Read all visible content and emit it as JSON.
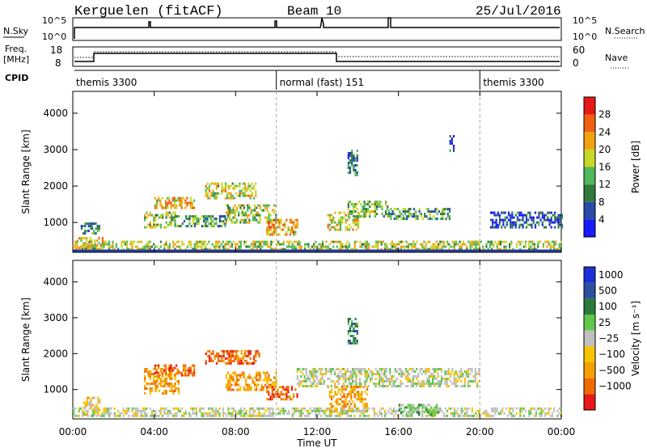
{
  "header": {
    "site": "Kerguelen (fitACF)",
    "beam": "Beam 10",
    "date": "25/Jul/2016"
  },
  "noise_panel": {
    "left_label": "N.Sky",
    "left_ticks": [
      "10^5",
      "10^0"
    ],
    "right_label": "N.Search",
    "right_ticks": [
      "10^5",
      "10^0"
    ]
  },
  "freq_panel": {
    "left_label_1": "Freq.",
    "left_label_2": "[MHz]",
    "left_ticks": [
      "18",
      "8"
    ],
    "right_label": "Nave",
    "right_ticks": [
      "60",
      "0"
    ]
  },
  "cpid_panel": {
    "label": "CPID",
    "modes": [
      {
        "text": "themis 3300",
        "start_hour": 0
      },
      {
        "text": "normal (fast) 151",
        "start_hour": 10
      },
      {
        "text": "themis 3300",
        "start_hour": 20
      }
    ]
  },
  "colors": {
    "power": [
      "#1a1aff",
      "#2a4aa8",
      "#2f7a3a",
      "#4fb85a",
      "#c8d829",
      "#f2a20d",
      "#f06010",
      "#e81818"
    ],
    "velocity": [
      "#1b2fd6",
      "#2c4fa0",
      "#2b7a3a",
      "#5fc74a",
      "#c0c0c0",
      "#f5c300",
      "#f5a000",
      "#f06a00",
      "#e81818"
    ],
    "ground_scatter": "#909090"
  },
  "chart_data": [
    {
      "type": "heatmap",
      "name": "Power",
      "ylabel": "Slant Range [km]",
      "yticks": [
        "1000",
        "2000",
        "3000",
        "4000"
      ],
      "ylim": [
        180,
        4600
      ],
      "colorbar_label": "Power [dB]",
      "colorbar_ticks": [
        "4",
        "8",
        "12",
        "16",
        "20",
        "24",
        "28"
      ],
      "colorbar_range": [
        0,
        32
      ],
      "blobs": [
        {
          "t0": 0.2,
          "t1": 1.5,
          "r0": 300,
          "r1": 600,
          "v": 20
        },
        {
          "t0": 0.3,
          "t1": 1.3,
          "r0": 700,
          "r1": 1000,
          "v": 10
        },
        {
          "t0": 3.5,
          "t1": 5.0,
          "r0": 900,
          "r1": 1300,
          "v": 17
        },
        {
          "t0": 4.0,
          "t1": 6.0,
          "r0": 1400,
          "r1": 1700,
          "v": 21
        },
        {
          "t0": 5.0,
          "t1": 7.5,
          "r0": 900,
          "r1": 1200,
          "v": 12
        },
        {
          "t0": 6.5,
          "t1": 9.0,
          "r0": 1700,
          "r1": 2100,
          "v": 18
        },
        {
          "t0": 7.5,
          "t1": 10.0,
          "r0": 1000,
          "r1": 1500,
          "v": 16
        },
        {
          "t0": 9.5,
          "t1": 11.0,
          "r0": 700,
          "r1": 1100,
          "v": 22
        },
        {
          "t0": 12.5,
          "t1": 14.0,
          "r0": 800,
          "r1": 1300,
          "v": 19
        },
        {
          "t0": 13.5,
          "t1": 15.5,
          "r0": 1200,
          "r1": 1600,
          "v": 14
        },
        {
          "t0": 15.5,
          "t1": 18.5,
          "r0": 1100,
          "r1": 1400,
          "v": 11
        },
        {
          "t0": 0,
          "t1": 24,
          "r0": 250,
          "r1": 500,
          "v": 17
        },
        {
          "t0": 13.5,
          "t1": 14.0,
          "r0": 2300,
          "r1": 3000,
          "v": 8
        },
        {
          "t0": 18.5,
          "t1": 18.7,
          "r0": 3000,
          "r1": 3400,
          "v": 6
        },
        {
          "t0": 20.5,
          "t1": 24,
          "r0": 900,
          "r1": 1300,
          "v": 6
        }
      ]
    },
    {
      "type": "heatmap",
      "name": "Velocity",
      "ylabel": "Slant Range [km]",
      "xlabel": "Time UT",
      "xticks": [
        "00:00",
        "04:00",
        "08:00",
        "12:00",
        "16:00",
        "20:00",
        "00:00"
      ],
      "xlim": [
        0,
        24
      ],
      "yticks": [
        "1000",
        "2000",
        "3000",
        "4000"
      ],
      "ylim": [
        180,
        4600
      ],
      "colorbar_label": "Velocity [m s⁻¹]",
      "colorbar_ticks": [
        "1000",
        "500",
        "100",
        "25",
        "−25",
        "−100",
        "−500",
        "−1000"
      ],
      "blobs": [
        {
          "t0": 0.5,
          "t1": 1.3,
          "r0": 300,
          "r1": 800,
          "cls": 5
        },
        {
          "t0": 3.5,
          "t1": 5.2,
          "r0": 900,
          "r1": 1600,
          "cls": 6
        },
        {
          "t0": 4.0,
          "t1": 6.0,
          "r0": 1400,
          "r1": 1700,
          "cls": 7
        },
        {
          "t0": 6.5,
          "t1": 9.2,
          "r0": 1700,
          "r1": 2100,
          "cls": 7
        },
        {
          "t0": 7.5,
          "t1": 10.0,
          "r0": 1000,
          "r1": 1500,
          "cls": 6
        },
        {
          "t0": 9.5,
          "t1": 11.0,
          "r0": 700,
          "r1": 1100,
          "cls": 7
        },
        {
          "t0": 11.0,
          "t1": 20.0,
          "r0": 1100,
          "r1": 1600,
          "cls": 4
        },
        {
          "t0": 12.5,
          "t1": 14.5,
          "r0": 400,
          "r1": 1100,
          "cls": 6
        },
        {
          "t0": 0,
          "t1": 24,
          "r0": 250,
          "r1": 500,
          "cls": 4
        },
        {
          "t0": 13.5,
          "t1": 14.0,
          "r0": 2300,
          "r1": 3000,
          "cls": 2
        },
        {
          "t0": 16.0,
          "t1": 18.0,
          "r0": 300,
          "r1": 600,
          "cls": 3
        }
      ]
    }
  ]
}
